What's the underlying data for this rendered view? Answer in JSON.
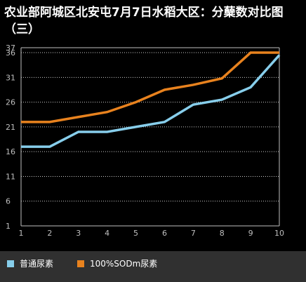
{
  "chart_data": {
    "type": "line",
    "title": "农业部阿城区北安屯7月7日水稻大区：分蘖数对比图（三）",
    "x": [
      1,
      2,
      3,
      4,
      5,
      6,
      7,
      8,
      9,
      10
    ],
    "yticks": [
      1,
      6,
      11,
      16,
      21,
      26,
      31,
      36,
      37
    ],
    "ylim": [
      1,
      37
    ],
    "xlim": [
      1,
      10
    ],
    "grid": true,
    "legend_position": "bottom",
    "series": [
      {
        "name": "普通尿素",
        "color": "#87ceeb",
        "values": [
          17,
          17,
          20,
          20,
          21,
          22,
          25.5,
          26.5,
          29,
          35.5
        ]
      },
      {
        "name": "100%SODm尿素",
        "color": "#e8821e",
        "values": [
          22,
          22,
          23,
          24,
          26,
          28.5,
          29.5,
          30.8,
          36,
          36
        ]
      }
    ]
  }
}
